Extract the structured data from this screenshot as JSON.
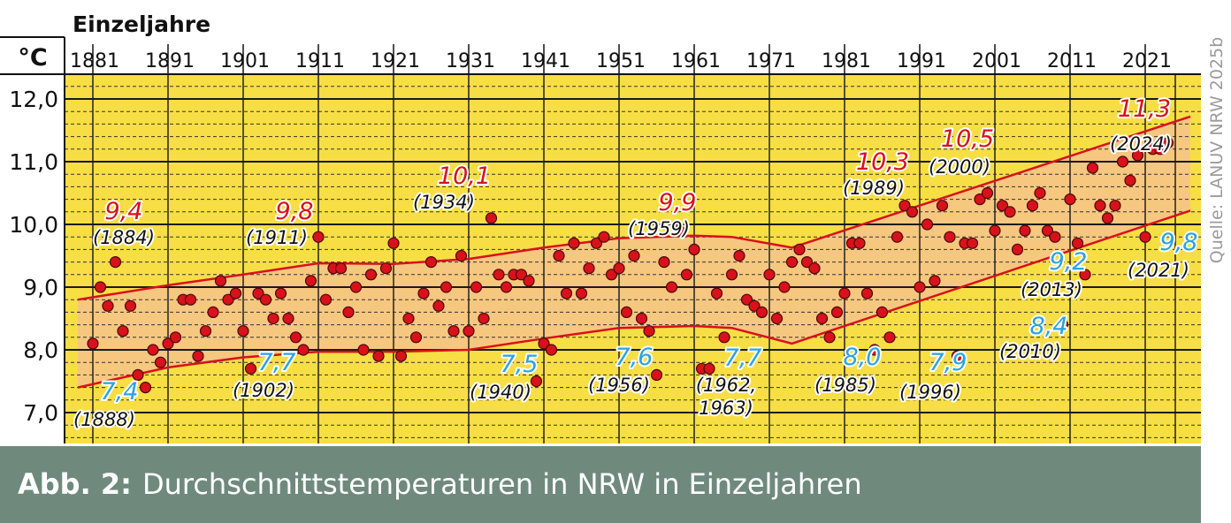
{
  "chart_data": {
    "type": "scatter",
    "title": "Einzeljahre",
    "unit_label": "°C",
    "xlim": [
      1879,
      2027
    ],
    "ylim": [
      6.5,
      12.5
    ],
    "x_ticks": [
      "1881",
      "1891",
      "1901",
      "1911",
      "1921",
      "1931",
      "1941",
      "1951",
      "1961",
      "1971",
      "1981",
      "1991",
      "2001",
      "2011",
      "2021"
    ],
    "y_ticks": [
      "7,0",
      "8,0",
      "9,0",
      "10,0",
      "11,0",
      "12,0"
    ],
    "grid": true,
    "colors": {
      "background": "#f7de45",
      "band": "#f6c77f",
      "trend": "#d8111b",
      "point": "#d8111b",
      "high_label": "#d8111b",
      "low_label": "#2ba3e0"
    },
    "series": [
      {
        "x": [
          1881,
          1882,
          1883,
          1884,
          1885,
          1886,
          1887,
          1888,
          1889,
          1890,
          1891,
          1892,
          1893,
          1894,
          1895,
          1896,
          1897,
          1898,
          1899,
          1900,
          1901,
          1902,
          1903,
          1904,
          1905,
          1906,
          1907,
          1908,
          1909,
          1910,
          1911,
          1912,
          1913,
          1914,
          1915,
          1916,
          1917,
          1918,
          1919,
          1920,
          1921,
          1922,
          1923,
          1924,
          1925,
          1926,
          1927,
          1928,
          1929,
          1930,
          1931,
          1932,
          1933,
          1934,
          1935,
          1936,
          1937,
          1938,
          1939,
          1940,
          1941,
          1942,
          1943,
          1944,
          1945,
          1946,
          1947,
          1948,
          1949,
          1950,
          1951,
          1952,
          1953,
          1954,
          1955,
          1956,
          1957,
          1958,
          1959,
          1960,
          1961,
          1962,
          1963,
          1964,
          1965,
          1966,
          1967,
          1968,
          1969,
          1970,
          1971,
          1972,
          1973,
          1974,
          1975,
          1976,
          1977,
          1978,
          1979,
          1980,
          1981,
          1982,
          1983,
          1984,
          1985,
          1986,
          1987,
          1988,
          1989,
          1990,
          1991,
          1992,
          1993,
          1994,
          1995,
          1996,
          1997,
          1998,
          1999,
          2000,
          2001,
          2002,
          2003,
          2004,
          2005,
          2006,
          2007,
          2008,
          2009,
          2010,
          2011,
          2012,
          2013,
          2014,
          2015,
          2016,
          2017,
          2018,
          2019,
          2020,
          2021,
          2022,
          2023,
          2024
        ],
        "y": [
          8.1,
          9.0,
          8.7,
          9.4,
          8.3,
          8.7,
          7.6,
          7.4,
          8.0,
          7.8,
          8.1,
          8.2,
          8.8,
          8.8,
          7.9,
          8.3,
          8.6,
          9.1,
          8.8,
          8.9,
          8.3,
          7.7,
          8.9,
          8.8,
          8.5,
          8.9,
          8.5,
          8.2,
          8.0,
          9.1,
          9.8,
          8.8,
          9.3,
          9.3,
          8.6,
          9.0,
          8.0,
          9.2,
          7.9,
          9.3,
          9.7,
          7.9,
          8.5,
          8.2,
          8.9,
          9.4,
          8.7,
          9.0,
          8.3,
          9.5,
          8.3,
          9.0,
          8.5,
          10.1,
          9.2,
          9.0,
          9.2,
          9.2,
          9.1,
          7.5,
          8.1,
          8.0,
          9.5,
          8.9,
          9.7,
          8.9,
          9.3,
          9.7,
          9.8,
          9.2,
          9.3,
          8.6,
          9.5,
          8.5,
          8.3,
          7.6,
          9.4,
          9.0,
          9.9,
          9.2,
          9.6,
          7.7,
          7.7,
          8.9,
          8.2,
          9.2,
          9.5,
          8.8,
          8.7,
          8.6,
          9.2,
          8.5,
          9.0,
          9.4,
          9.6,
          9.4,
          9.3,
          8.5,
          8.2,
          8.6,
          8.9,
          9.7,
          9.7,
          8.9,
          8.0,
          8.6,
          8.2,
          9.8,
          10.3,
          10.2,
          9.0,
          10.0,
          9.1,
          10.3,
          9.8,
          7.9,
          9.7,
          9.7,
          10.4,
          10.5,
          9.9,
          10.3,
          10.2,
          9.6,
          9.9,
          10.3,
          10.5,
          9.9,
          9.8,
          8.4,
          10.4,
          9.7,
          9.2,
          10.9,
          10.3,
          10.1,
          10.3,
          11.0,
          10.7,
          11.1,
          9.8,
          11.2,
          11.2,
          11.3
        ]
      }
    ],
    "annotations": [
      {
        "value": "9,4",
        "year": "(1884)",
        "kind": "high"
      },
      {
        "value": "9,8",
        "year": "(1911)",
        "kind": "high"
      },
      {
        "value": "10,1",
        "year": "(1934)",
        "kind": "high"
      },
      {
        "value": "9,9",
        "year": "(1959)",
        "kind": "high"
      },
      {
        "value": "10,3",
        "year": "(1989)",
        "kind": "high"
      },
      {
        "value": "10,5",
        "year": "(2000)",
        "kind": "high"
      },
      {
        "value": "11,3",
        "year": "(2024)",
        "kind": "high"
      },
      {
        "value": "7,4",
        "year": "(1888)",
        "kind": "low"
      },
      {
        "value": "7,7",
        "year": "(1902)",
        "kind": "low"
      },
      {
        "value": "7,5",
        "year": "(1940)",
        "kind": "low"
      },
      {
        "value": "7,6",
        "year": "(1956)",
        "kind": "low"
      },
      {
        "value": "7,7",
        "year": "(1962,",
        "year2": "1963)",
        "kind": "low"
      },
      {
        "value": "8,0",
        "year": "(1985)",
        "kind": "low"
      },
      {
        "value": "7,9",
        "year": "(1996)",
        "kind": "low"
      },
      {
        "value": "8,4",
        "year": "(2010)",
        "kind": "low"
      },
      {
        "value": "9,2",
        "year": "(2013)",
        "kind": "low"
      },
      {
        "value": "9,8",
        "year": "(2021)",
        "kind": "low"
      }
    ],
    "trend_lines": {
      "upper": [
        [
          1879,
          8.8
        ],
        [
          1891,
          9.03
        ],
        [
          1901,
          9.2
        ],
        [
          1911,
          9.38
        ],
        [
          1921,
          9.37
        ],
        [
          1931,
          9.45
        ],
        [
          1941,
          9.63
        ],
        [
          1951,
          9.78
        ],
        [
          1961,
          9.82
        ],
        [
          1966,
          9.8
        ],
        [
          1974,
          9.63
        ],
        [
          2027,
          11.72
        ]
      ],
      "lower": [
        [
          1879,
          7.4
        ],
        [
          1891,
          7.72
        ],
        [
          1901,
          7.88
        ],
        [
          1911,
          7.97
        ],
        [
          1921,
          7.97
        ],
        [
          1931,
          8.0
        ],
        [
          1941,
          8.18
        ],
        [
          1951,
          8.35
        ],
        [
          1961,
          8.38
        ],
        [
          1966,
          8.35
        ],
        [
          1974,
          8.1
        ],
        [
          2027,
          10.22
        ]
      ]
    }
  },
  "caption": {
    "prefix": "Abb. 2:",
    "text": "Durchschnittstemperaturen in NRW in Einzeljahren"
  },
  "source": "Quelle: LANUV NRW 2025b"
}
